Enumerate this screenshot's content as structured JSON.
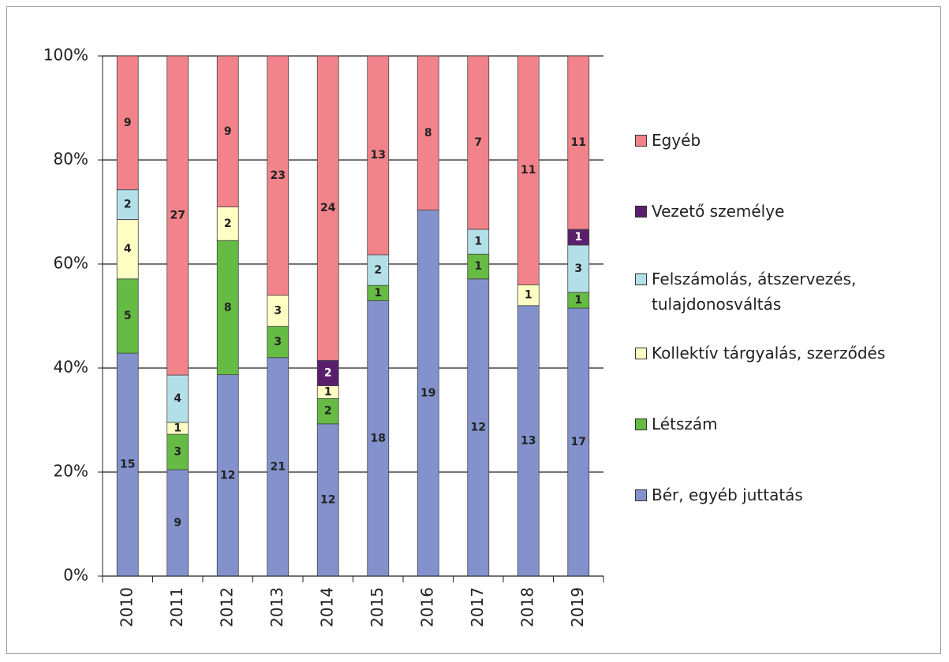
{
  "chart_data": {
    "type": "bar",
    "stacked_percent": true,
    "categories": [
      "2010",
      "2011",
      "2012",
      "2013",
      "2014",
      "2015",
      "2016",
      "2017",
      "2018",
      "2019"
    ],
    "series": [
      {
        "name": "Bér, egyéb juttatás",
        "color": "#8392cc",
        "values": [
          15,
          9,
          12,
          21,
          12,
          18,
          19,
          12,
          13,
          17
        ]
      },
      {
        "name": "Létszám",
        "color": "#66bb44",
        "values": [
          5,
          3,
          8,
          3,
          2,
          1,
          null,
          1,
          null,
          1
        ]
      },
      {
        "name": "Kollektív tárgyalás, szerződés",
        "color": "#ffffc4",
        "values": [
          4,
          1,
          2,
          3,
          1,
          null,
          null,
          null,
          1,
          null
        ]
      },
      {
        "name": "Felszámolás, átszervezés, tulajdonosváltás",
        "color": "#b3e0e8",
        "values": [
          2,
          4,
          null,
          null,
          null,
          2,
          null,
          1,
          null,
          3
        ]
      },
      {
        "name": "Vezető személye",
        "color": "#5a1f6b",
        "values": [
          null,
          null,
          null,
          null,
          2,
          null,
          null,
          null,
          null,
          1
        ]
      },
      {
        "name": "Egyéb",
        "color": "#f2838b",
        "values": [
          9,
          27,
          9,
          23,
          24,
          13,
          8,
          7,
          11,
          11
        ]
      }
    ],
    "ylim": [
      0,
      100
    ],
    "yticks": [
      {
        "value": 0,
        "label": "0%"
      },
      {
        "value": 20,
        "label": "20%"
      },
      {
        "value": 40,
        "label": "40%"
      },
      {
        "value": 60,
        "label": "60%"
      },
      {
        "value": 80,
        "label": "80%"
      },
      {
        "value": 100,
        "label": "100%"
      }
    ],
    "grid": true
  }
}
